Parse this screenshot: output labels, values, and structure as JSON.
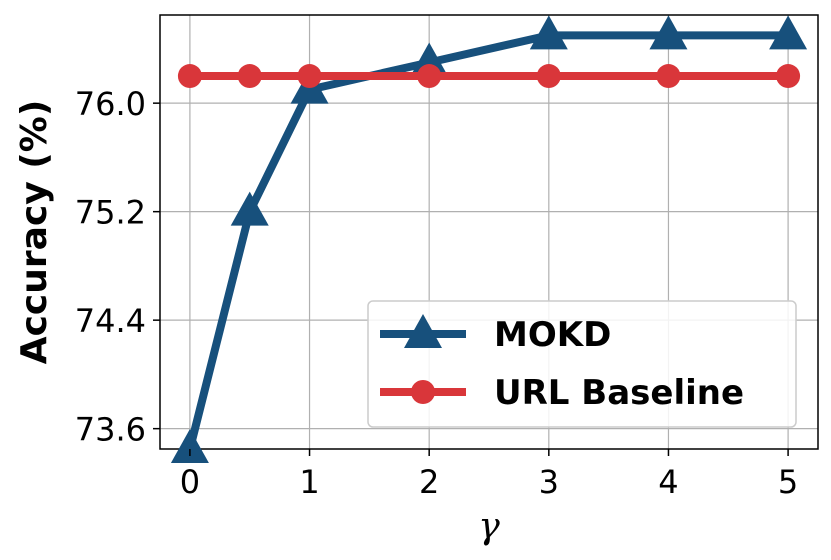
{
  "chart_data": {
    "type": "line",
    "x": [
      0,
      0.5,
      1,
      2,
      3,
      4,
      5
    ],
    "series": [
      {
        "name": "MOKD",
        "values": [
          73.45,
          75.2,
          76.1,
          76.3,
          76.5,
          76.5,
          76.5
        ],
        "color": "#17507c",
        "marker": "triangle"
      },
      {
        "name": "URL Baseline",
        "values": [
          76.2,
          76.2,
          76.2,
          76.2,
          76.2,
          76.2,
          76.2
        ],
        "color": "#d9363a",
        "marker": "circle"
      }
    ],
    "xlabel": "γ",
    "ylabel": "Accuracy (%)",
    "xticks": [
      0,
      1,
      2,
      3,
      4,
      5
    ],
    "xtick_labels": [
      "0",
      "1",
      "2",
      "3",
      "4",
      "5"
    ],
    "yticks": [
      73.6,
      74.4,
      75.2,
      76.0
    ],
    "ytick_labels": [
      "73.6",
      "74.4",
      "75.2",
      "76.0"
    ],
    "xlim": [
      -0.25,
      5.25
    ],
    "ylim": [
      73.45,
      76.65
    ],
    "grid": true,
    "legend": "lower-right"
  }
}
